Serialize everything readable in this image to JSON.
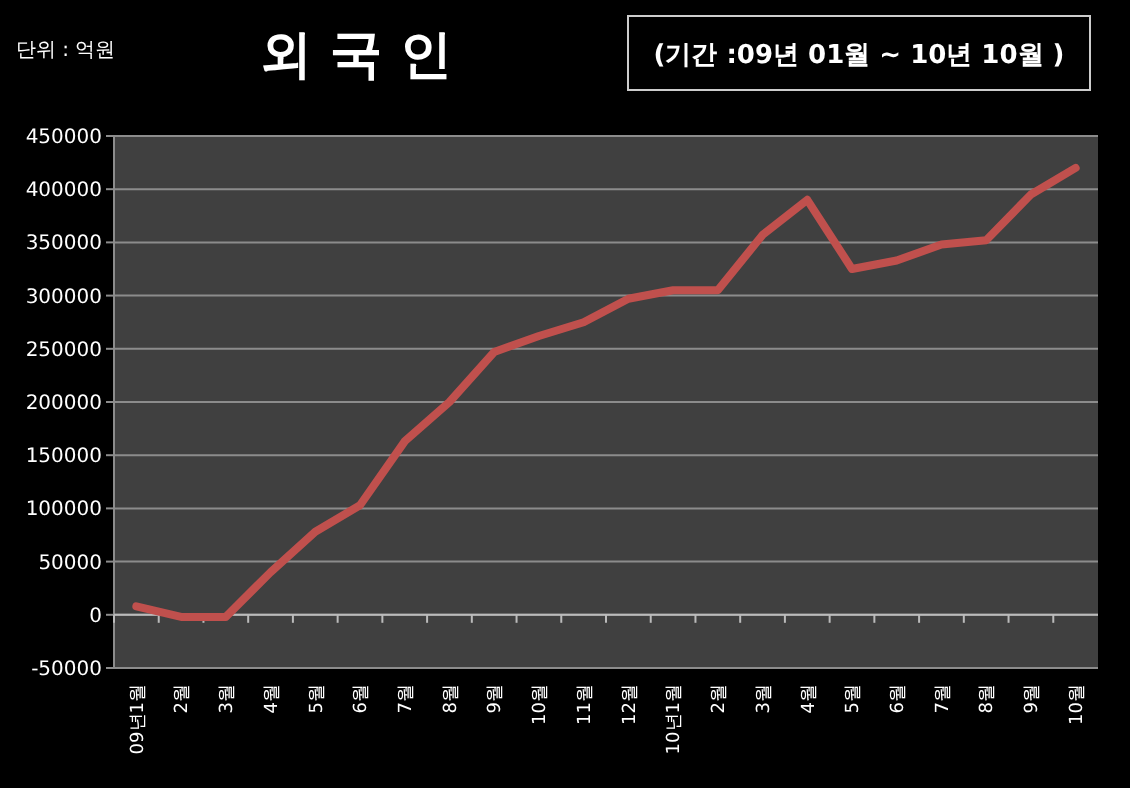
{
  "chart_data": {
    "type": "line",
    "title": "외 국 인",
    "subtitle": "(기간 :09년 01월 ~ 10년 10월 )",
    "annotations": [
      "단위 : 억원"
    ],
    "categories": [
      "09년1월",
      "2월",
      "3월",
      "4월",
      "5월",
      "6월",
      "7월",
      "8월",
      "9월",
      "10월",
      "11월",
      "12월",
      "10년1월",
      "2월",
      "3월",
      "4월",
      "5월",
      "6월",
      "7월",
      "8월",
      "9월",
      "10월"
    ],
    "series": [
      {
        "color": "#c0504d",
        "values": [
          8000,
          -2000,
          -2000,
          40000,
          78000,
          103000,
          163000,
          200000,
          247000,
          262000,
          275000,
          297000,
          305000,
          305000,
          357000,
          390000,
          325000,
          333000,
          348000,
          352000,
          395000,
          420000
        ]
      }
    ],
    "ylim": [
      -50000,
      450000
    ],
    "yticks": [
      -50000,
      0,
      50000,
      100000,
      150000,
      200000,
      250000,
      300000,
      350000,
      400000,
      450000
    ],
    "grid": "y",
    "marker": "none",
    "line_style": "solid"
  }
}
